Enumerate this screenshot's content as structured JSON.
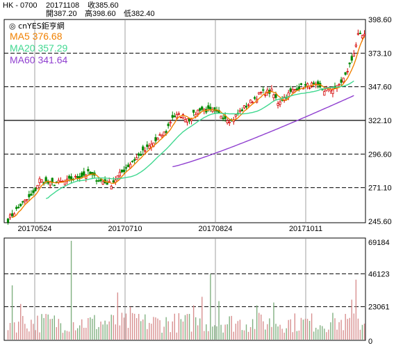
{
  "header": {
    "symbol": "HK - 0700",
    "date": "20171108",
    "close": "收385.60",
    "open": "開387.20",
    "high": "高398.60",
    "low": "低382.40"
  },
  "source_label": "◎ cnYES鉅亨網",
  "colors": {
    "up": "#d40000",
    "down": "#008800",
    "ma5": "#f08000",
    "ma20": "#40d890",
    "ma60": "#9040d0",
    "vol_up": "#d89090",
    "vol_down": "#80b080"
  },
  "chart_data": {
    "type": "candlestick",
    "price_axis": {
      "ticks": [
        "398.60",
        "373.10",
        "347.60",
        "322.10",
        "296.60",
        "271.10",
        "245.60"
      ],
      "range": [
        245.6,
        398.6
      ]
    },
    "volume_axis": {
      "ticks": [
        "69184",
        "46123",
        "23061",
        "0"
      ],
      "range": [
        0,
        69184
      ]
    },
    "x_ticks": [
      "20170524",
      "20170710",
      "20170824",
      "20171011"
    ],
    "legend": [
      {
        "key": "ma5",
        "label": "MA5",
        "value": "376.68"
      },
      {
        "key": "ma20",
        "label": "MA20",
        "value": "357.29"
      },
      {
        "key": "ma60",
        "label": "MA60",
        "value": "341.64"
      }
    ],
    "close_anchors": [
      [
        0,
        247
      ],
      [
        6,
        258
      ],
      [
        12,
        266
      ],
      [
        15,
        277
      ],
      [
        20,
        274
      ],
      [
        28,
        276
      ],
      [
        33,
        279
      ],
      [
        38,
        282
      ],
      [
        44,
        276
      ],
      [
        49,
        274
      ],
      [
        54,
        283
      ],
      [
        59,
        291
      ],
      [
        64,
        298
      ],
      [
        69,
        305
      ],
      [
        75,
        314
      ],
      [
        78,
        325
      ],
      [
        82,
        326
      ],
      [
        86,
        323
      ],
      [
        91,
        331
      ],
      [
        96,
        329
      ],
      [
        100,
        327
      ],
      [
        106,
        322
      ],
      [
        110,
        329
      ],
      [
        115,
        336
      ],
      [
        120,
        343
      ],
      [
        125,
        344
      ],
      [
        128,
        336
      ],
      [
        133,
        342
      ],
      [
        137,
        347
      ],
      [
        144,
        349
      ],
      [
        150,
        345
      ],
      [
        156,
        347
      ],
      [
        160,
        356
      ],
      [
        163,
        368
      ],
      [
        166,
        386
      ]
    ],
    "ma20_range": [
      18,
      165
    ],
    "ma60_range": [
      78,
      165
    ],
    "ma20_last": 357.29,
    "ma60_last": 341.64,
    "ma60_first": 287,
    "volume_base": 12000,
    "volume_spikes": [
      [
        2,
        38000
      ],
      [
        6,
        25000
      ],
      [
        18,
        18000
      ],
      [
        30,
        69184
      ],
      [
        52,
        33000
      ],
      [
        58,
        23000
      ],
      [
        62,
        18000
      ],
      [
        88,
        24000
      ],
      [
        92,
        30000
      ],
      [
        96,
        46000
      ],
      [
        100,
        27000
      ],
      [
        118,
        24000
      ],
      [
        126,
        26000
      ],
      [
        140,
        14000
      ],
      [
        155,
        15000
      ],
      [
        163,
        28000
      ],
      [
        165,
        42000
      ]
    ]
  }
}
